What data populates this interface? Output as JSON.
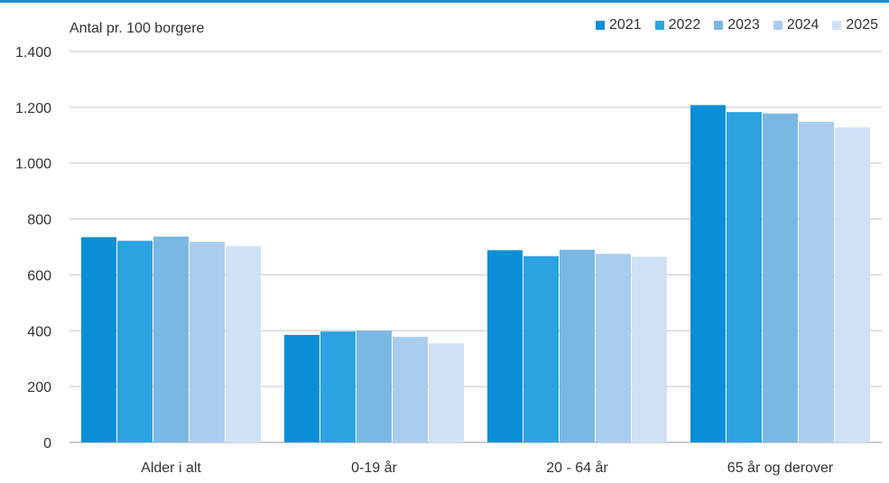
{
  "chart_data": {
    "type": "bar",
    "title": "",
    "ylabel": "Antal pr. 100 borgere",
    "xlabel": "",
    "categories": [
      "Alder i alt",
      "0-19 år",
      "20 - 64 år",
      "65 år og derover"
    ],
    "series": [
      {
        "name": "2021",
        "color": "#0a8fd6",
        "values": [
          735,
          385,
          688,
          1208
        ]
      },
      {
        "name": "2022",
        "color": "#2aa3e0",
        "values": [
          722,
          397,
          667,
          1183
        ]
      },
      {
        "name": "2023",
        "color": "#7ab8e4",
        "values": [
          737,
          400,
          690,
          1178
        ]
      },
      {
        "name": "2024",
        "color": "#a9cdee",
        "values": [
          718,
          378,
          675,
          1148
        ]
      },
      {
        "name": "2025",
        "color": "#cfe1f5",
        "values": [
          703,
          355,
          665,
          1128
        ]
      }
    ],
    "ylim": [
      0,
      1400
    ],
    "yticks": [
      0,
      200,
      400,
      600,
      800,
      1000,
      1200,
      1400
    ],
    "ytick_labels": [
      "0",
      "200",
      "400",
      "600",
      "800",
      "1.000",
      "1.200",
      "1.400"
    ],
    "grid": true,
    "legend_position": "top-right"
  }
}
